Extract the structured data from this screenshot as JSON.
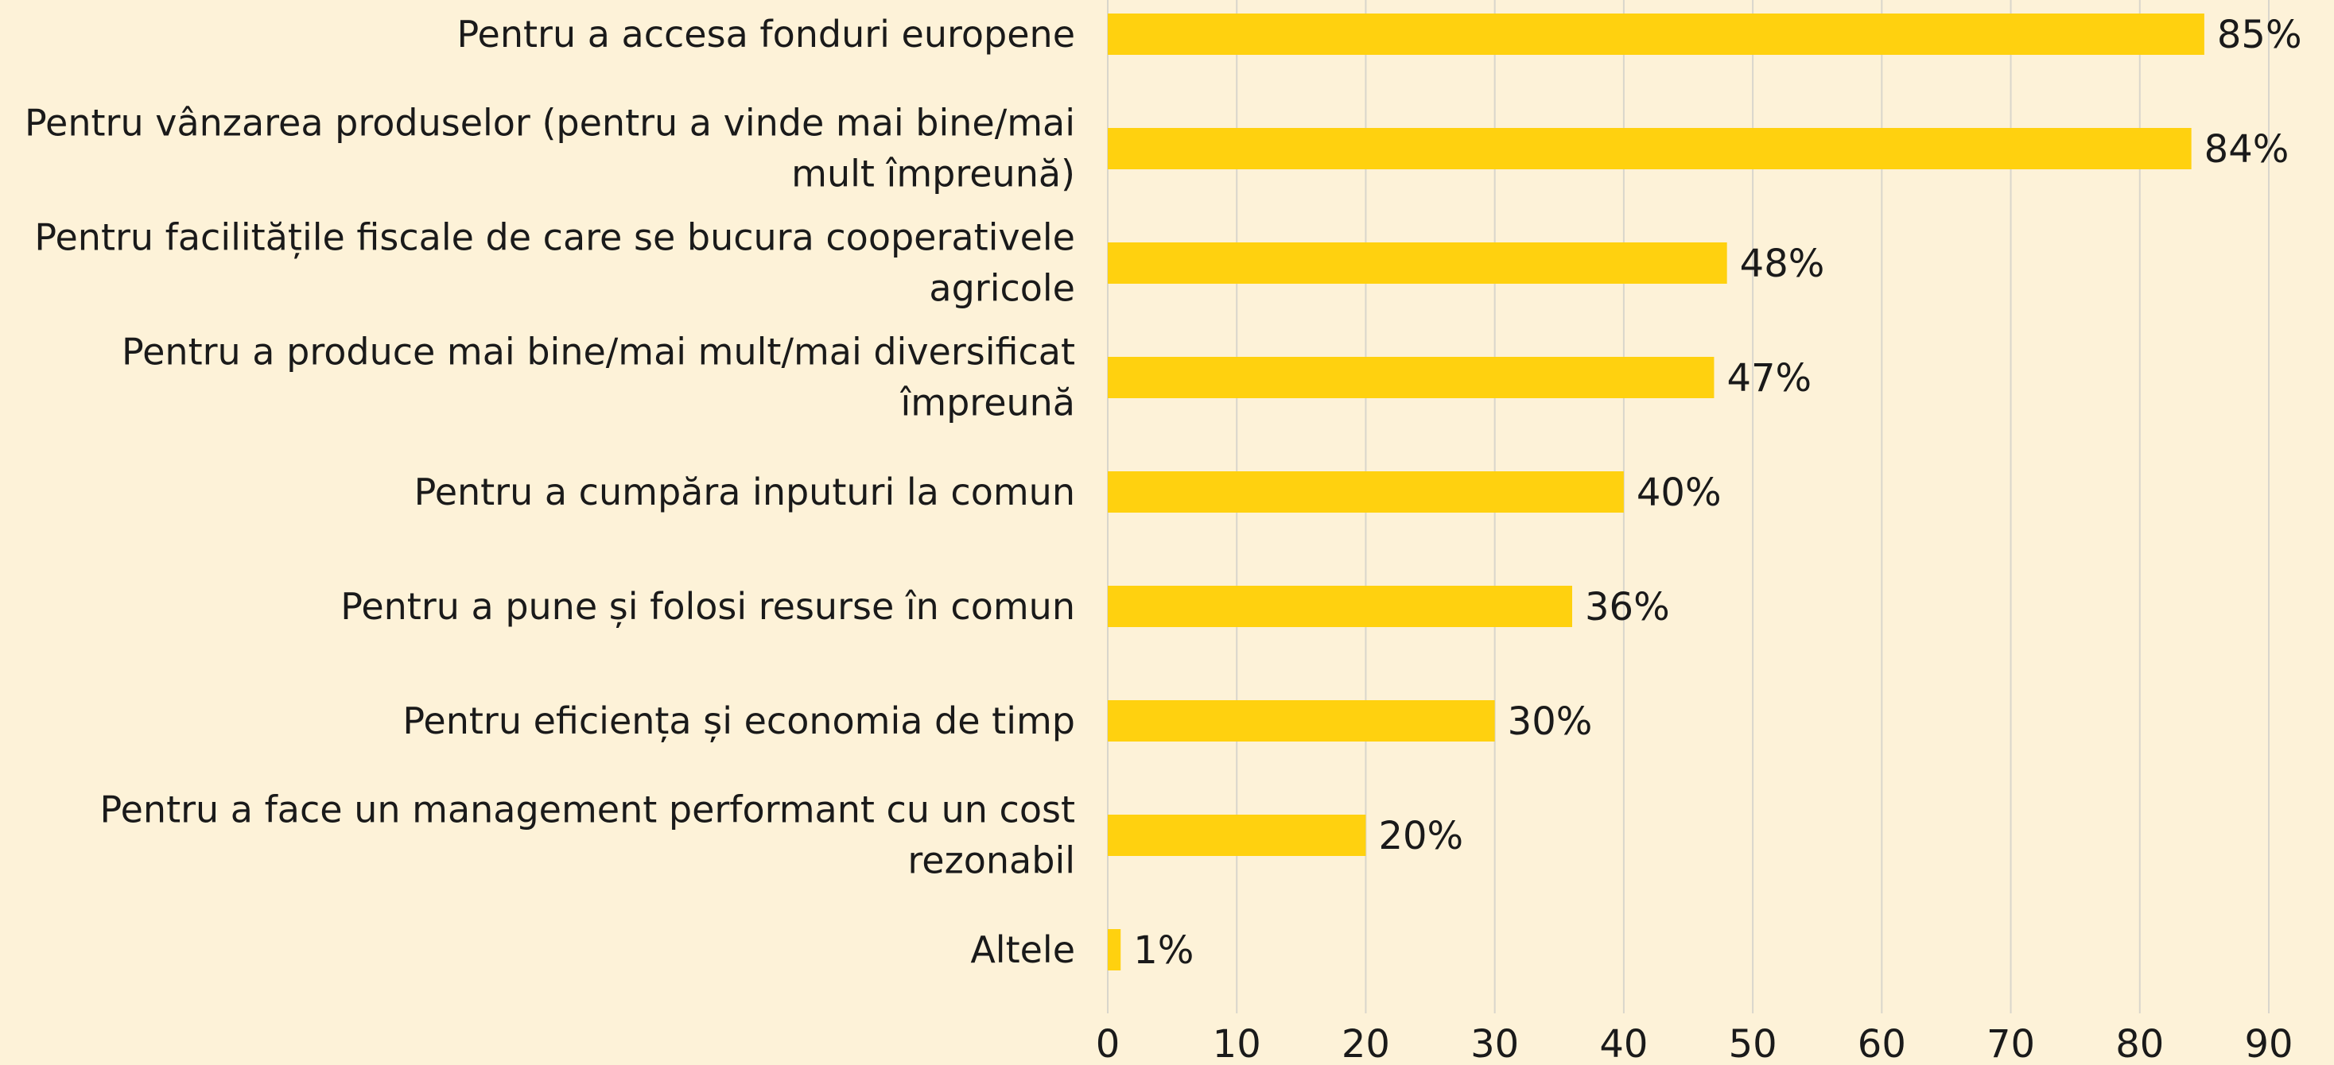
{
  "chart_data": {
    "type": "bar",
    "orientation": "horizontal",
    "categories": [
      "Pentru a accesa fonduri europene",
      "Pentru vânzarea produselor (pentru a vinde mai bine/mai mult împreună)",
      "Pentru facilitățile fiscale de care se bucura cooperativele agricole",
      "Pentru a produce mai bine/mai mult/mai diversificat împreună",
      "Pentru a cumpăra inputuri la comun",
      "Pentru a pune și folosi resurse în comun",
      "Pentru eficiența și economia de timp",
      "Pentru a face un management performant cu un cost rezonabil",
      "Altele"
    ],
    "values": [
      85,
      84,
      48,
      47,
      40,
      36,
      30,
      20,
      1
    ],
    "value_labels": [
      "85%",
      "84%",
      "48%",
      "47%",
      "40%",
      "36%",
      "30%",
      "20%",
      "1%"
    ],
    "color": "#ffd10f",
    "xlim": [
      0,
      90
    ],
    "xticks": [
      0,
      10,
      20,
      30,
      40,
      50,
      60,
      70,
      80,
      90
    ],
    "grid": true
  }
}
